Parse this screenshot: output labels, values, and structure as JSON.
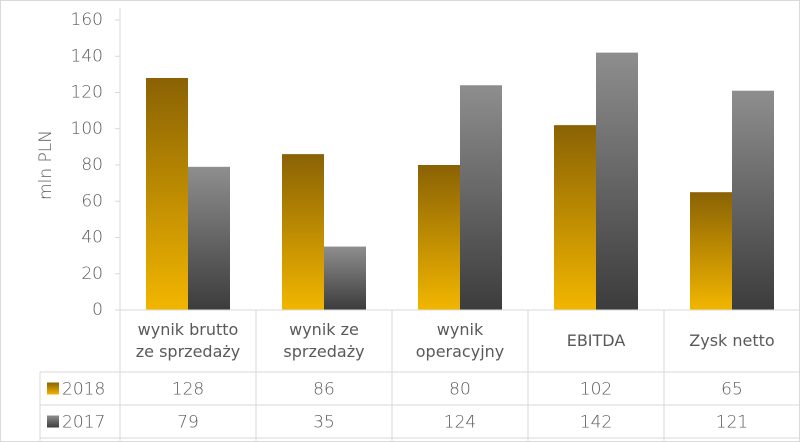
{
  "chart_data": {
    "type": "bar",
    "y_label": "mln PLN",
    "categories": [
      "wynik brutto ze sprzedaży",
      "wynik ze sprzedaży",
      "wynik operacyjny",
      "EBITDA",
      "Zysk netto"
    ],
    "series": [
      {
        "name": "2018",
        "color": "#d9a300",
        "gradient": [
          "#8a6204",
          "#f2b600"
        ],
        "values": [
          128,
          86,
          80,
          102,
          65
        ]
      },
      {
        "name": "2017",
        "color": "#6e6e6e",
        "gradient": [
          "#8e8e8e",
          "#3c3c3c"
        ],
        "values": [
          79,
          35,
          124,
          142,
          121
        ]
      }
    ],
    "ylim": [
      0,
      160
    ],
    "yticks": [
      0,
      20,
      40,
      60,
      80,
      100,
      120,
      140,
      160
    ],
    "grid": false
  }
}
